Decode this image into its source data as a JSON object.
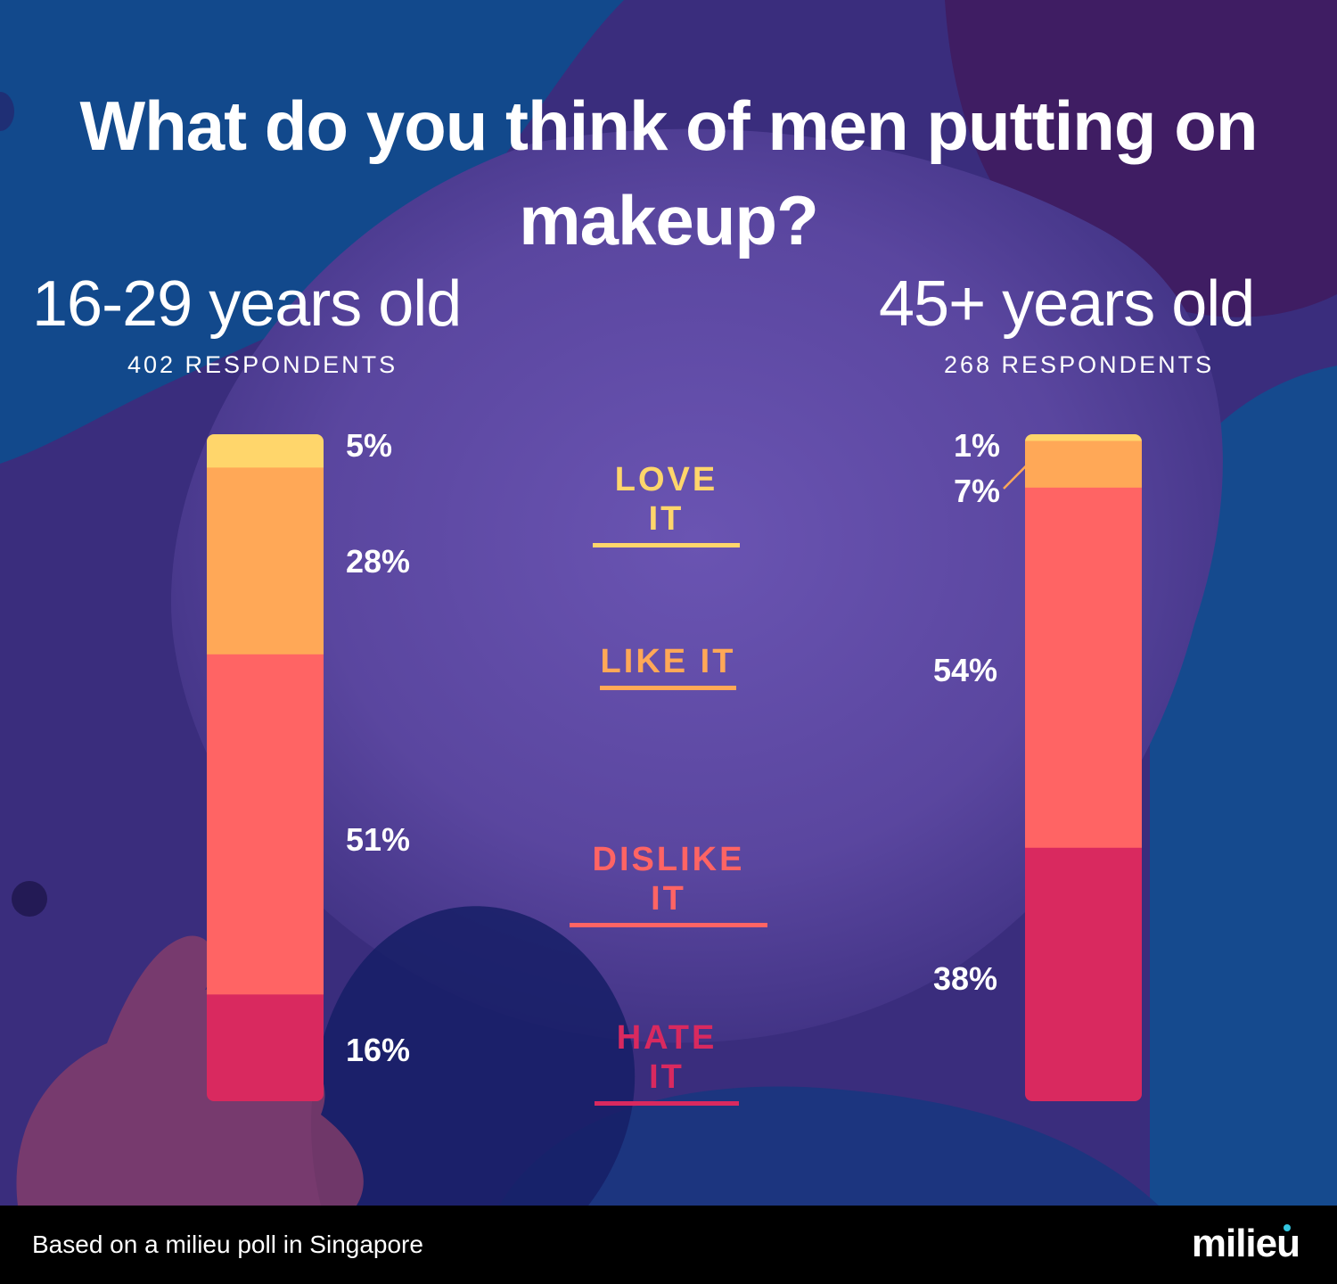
{
  "title": "What do you think of men putting on makeup?",
  "groups": [
    {
      "label": "16-29 years old",
      "respondents": "402 RESPONDENTS"
    },
    {
      "label": "45+ years old",
      "respondents": "268 RESPONDENTS"
    }
  ],
  "categories": [
    {
      "label": "LOVE IT",
      "color": "#ffd66b"
    },
    {
      "label": "LIKE IT",
      "color": "#ffa857"
    },
    {
      "label": "DISLIKE IT",
      "color": "#ff6464"
    },
    {
      "label": "HATE IT",
      "color": "#d9295f"
    }
  ],
  "chart_data": {
    "type": "bar",
    "stacked": true,
    "orientation": "vertical",
    "title": "What do you think of men putting on makeup?",
    "categories": [
      "16-29 years old",
      "45+ years old"
    ],
    "series": [
      {
        "name": "LOVE IT",
        "values": [
          5,
          1
        ],
        "labels": [
          "5%",
          "1%"
        ],
        "color": "#ffd66b"
      },
      {
        "name": "LIKE IT",
        "values": [
          28,
          7
        ],
        "labels": [
          "28%",
          "7%"
        ],
        "color": "#ffa857"
      },
      {
        "name": "DISLIKE IT",
        "values": [
          51,
          54
        ],
        "labels": [
          "51%",
          "54%"
        ],
        "color": "#ff6464"
      },
      {
        "name": "HATE IT",
        "values": [
          16,
          38
        ],
        "labels": [
          "16%",
          "38%"
        ],
        "color": "#d9295f"
      }
    ],
    "unit": "%",
    "ylim": [
      0,
      100
    ]
  },
  "footer": {
    "note": "Based on a milieu poll in Singapore",
    "logo": "milieu"
  }
}
